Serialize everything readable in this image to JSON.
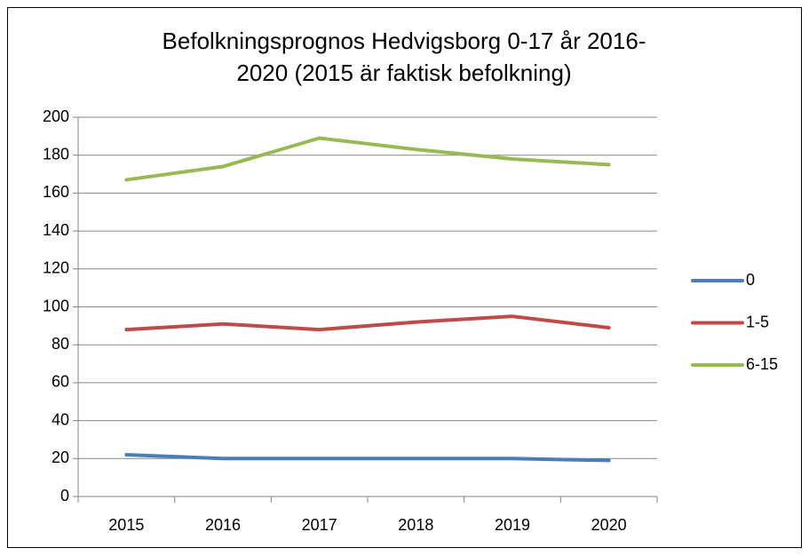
{
  "chart_data": {
    "type": "line",
    "title": [
      "Befolkningsprognos Hedvigsborg 0-17 år 2016-",
      "2020 (2015 är faktisk befolkning)"
    ],
    "categories": [
      "2015",
      "2016",
      "2017",
      "2018",
      "2019",
      "2020"
    ],
    "series": [
      {
        "name": "0",
        "color": "#4a7ebb",
        "values": [
          22,
          20,
          20,
          20,
          20,
          19
        ]
      },
      {
        "name": "1-5",
        "color": "#be4b48",
        "values": [
          88,
          91,
          88,
          92,
          95,
          89
        ]
      },
      {
        "name": "6-15",
        "color": "#98b954",
        "values": [
          167,
          174,
          189,
          183,
          178,
          175
        ]
      }
    ],
    "ylim": [
      0,
      200
    ],
    "yticks": [
      0,
      20,
      40,
      60,
      80,
      100,
      120,
      140,
      160,
      180,
      200
    ],
    "grid": true,
    "legend": "right"
  }
}
